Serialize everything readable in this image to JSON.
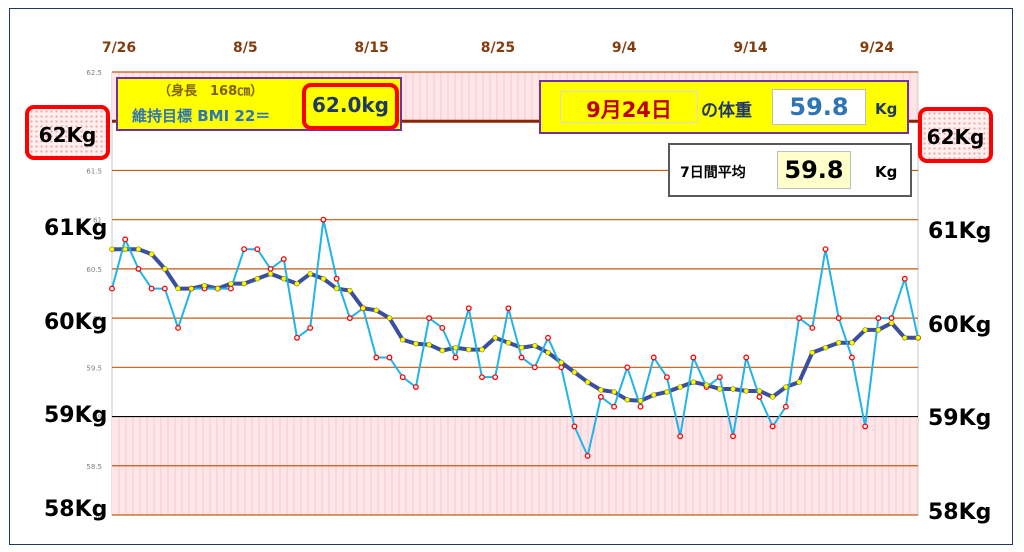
{
  "header": {
    "height_label": "（身長　168㎝）",
    "target_label": "維持目標 BMI 22＝",
    "target_value": "62.0kg",
    "date_label": "9月24日",
    "weight_caption": "の体重",
    "weight_value": "59.8",
    "weight_unit": "Kg",
    "avg_label": "7日間平均",
    "avg_value": "59.8",
    "avg_unit": "Kg"
  },
  "side_labels": {
    "left_62": "62Kg",
    "right_62": "62Kg",
    "left": [
      "61Kg",
      "60Kg",
      "59Kg",
      "58Kg"
    ],
    "right": [
      "61Kg",
      "60Kg",
      "59Kg",
      "58Kg"
    ]
  },
  "colors": {
    "daily_line": "#1fb5ec",
    "daily_marker_edge": "#ff0000",
    "avg_line": "#3a4fa0",
    "avg_marker": "#ffff00",
    "gridline": "#c55a11",
    "pink_band": "#fde5e8",
    "header_yellow": "#ffff00",
    "header_border": "#7030a0",
    "highlight_red": "#ff0000"
  },
  "chart_data": {
    "type": "line",
    "x_ticks": [
      "7/26",
      "8/5",
      "8/15",
      "8/25",
      "9/4",
      "9/14",
      "9/24"
    ],
    "y_ticks": [
      "62.5",
      "62",
      "61.5",
      "61",
      "60.5",
      "60",
      "59.5",
      "59",
      "58.5",
      "58"
    ],
    "ylim": [
      58,
      62.5
    ],
    "target_weight": 62.0,
    "grid": true,
    "series": [
      {
        "values": [
          60.3,
          60.8,
          60.5,
          60.3,
          60.3,
          59.9,
          60.3,
          60.3,
          60.3,
          60.3,
          60.7,
          60.7,
          60.5,
          60.6,
          59.8,
          59.9,
          61.0,
          60.4,
          60.0,
          60.1,
          59.6,
          59.6,
          59.4,
          59.3,
          60.0,
          59.9,
          59.6,
          60.1,
          59.4,
          59.4,
          60.1,
          59.6,
          59.5,
          59.8,
          59.5,
          58.9,
          58.6,
          59.2,
          59.1,
          59.5,
          59.1,
          59.6,
          59.4,
          58.8,
          59.6,
          59.3,
          59.4,
          58.8,
          59.6,
          59.2,
          58.9,
          59.1,
          60.0,
          59.9,
          60.7,
          60.0,
          59.6,
          58.9,
          60.0,
          60.0,
          60.4,
          59.8
        ]
      },
      {
        "values": [
          60.7,
          60.7,
          60.7,
          60.65,
          60.5,
          60.3,
          60.3,
          60.33,
          60.3,
          60.35,
          60.35,
          60.4,
          60.45,
          60.4,
          60.35,
          60.45,
          60.4,
          60.3,
          60.28,
          60.1,
          60.08,
          60.0,
          59.78,
          59.74,
          59.73,
          59.67,
          59.7,
          59.68,
          59.68,
          59.8,
          59.75,
          59.7,
          59.72,
          59.65,
          59.55,
          59.45,
          59.35,
          59.27,
          59.25,
          59.17,
          59.16,
          59.22,
          59.25,
          59.3,
          59.35,
          59.32,
          59.28,
          59.28,
          59.26,
          59.26,
          59.2,
          59.3,
          59.35,
          59.65,
          59.7,
          59.75,
          59.75,
          59.88,
          59.88,
          59.95,
          59.8,
          59.8
        ]
      }
    ]
  }
}
